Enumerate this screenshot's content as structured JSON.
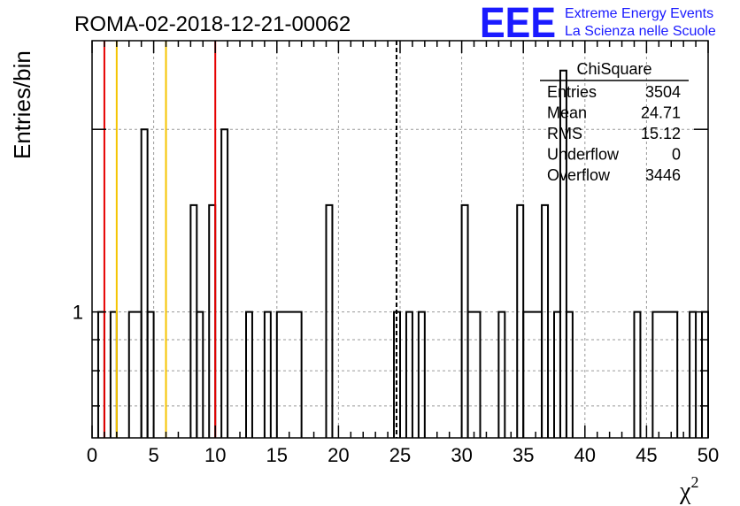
{
  "header": {
    "title": "ROMA-02-2018-12-21-00062",
    "logo_text": "EEE",
    "logo_line1": "Extreme Energy Events",
    "logo_line2": "La Scienza nelle Scuole",
    "logo_color": "#1a1aff"
  },
  "stats": {
    "title": "ChiSquare",
    "rows": [
      {
        "label": "Entries",
        "value": "3504"
      },
      {
        "label": "Mean",
        "value": "24.71"
      },
      {
        "label": "RMS",
        "value": "15.12"
      },
      {
        "label": "Underflow",
        "value": "0"
      },
      {
        "label": "Overflow",
        "value": "3446"
      }
    ]
  },
  "chart_data": {
    "type": "bar",
    "histogram": "step",
    "xlabel": "χ",
    "xlabel_sup": "2",
    "ylabel": "Entries/bin",
    "xlim": [
      0,
      50
    ],
    "ylim": [
      0.62,
      2.8
    ],
    "yscale": "log",
    "grid": true,
    "bin_width": 0.5,
    "x_ticks": [
      0,
      5,
      10,
      15,
      20,
      25,
      30,
      35,
      40,
      45,
      50
    ],
    "y_tick_labels": [
      {
        "value": 1,
        "label": "1"
      }
    ],
    "bins": [
      {
        "x0": 0.5,
        "x1": 1.0,
        "count": 1
      },
      {
        "x0": 1.5,
        "x1": 2.0,
        "count": 1
      },
      {
        "x0": 3.0,
        "x1": 4.0,
        "count": 1
      },
      {
        "x0": 4.0,
        "x1": 4.5,
        "count": 2
      },
      {
        "x0": 4.5,
        "x1": 5.0,
        "count": 1
      },
      {
        "x0": 8.0,
        "x1": 8.5,
        "count": 1.5
      },
      {
        "x0": 8.5,
        "x1": 9.0,
        "count": 1
      },
      {
        "x0": 9.5,
        "x1": 10.0,
        "count": 1.5
      },
      {
        "x0": 10.5,
        "x1": 11.0,
        "count": 2
      },
      {
        "x0": 12.5,
        "x1": 13.0,
        "count": 1
      },
      {
        "x0": 14.0,
        "x1": 14.5,
        "count": 1
      },
      {
        "x0": 15.0,
        "x1": 17.0,
        "count": 1
      },
      {
        "x0": 19.0,
        "x1": 19.5,
        "count": 1.5
      },
      {
        "x0": 24.5,
        "x1": 25.0,
        "count": 1
      },
      {
        "x0": 25.5,
        "x1": 26.0,
        "count": 1
      },
      {
        "x0": 26.5,
        "x1": 27.0,
        "count": 1
      },
      {
        "x0": 30.0,
        "x1": 30.5,
        "count": 1.5
      },
      {
        "x0": 30.5,
        "x1": 31.5,
        "count": 1
      },
      {
        "x0": 33.0,
        "x1": 33.5,
        "count": 1
      },
      {
        "x0": 34.5,
        "x1": 35.0,
        "count": 1.5
      },
      {
        "x0": 35.0,
        "x1": 36.5,
        "count": 1
      },
      {
        "x0": 36.5,
        "x1": 37.0,
        "count": 1.5
      },
      {
        "x0": 37.5,
        "x1": 38.0,
        "count": 1
      },
      {
        "x0": 38.0,
        "x1": 38.5,
        "count": 2.5
      },
      {
        "x0": 38.5,
        "x1": 39.0,
        "count": 1
      },
      {
        "x0": 44.0,
        "x1": 44.5,
        "count": 1
      },
      {
        "x0": 45.5,
        "x1": 47.5,
        "count": 1
      },
      {
        "x0": 48.5,
        "x1": 49.0,
        "count": 1
      },
      {
        "x0": 49.5,
        "x1": 50.0,
        "count": 1
      }
    ],
    "reference_lines": [
      {
        "x": 1.0,
        "color": "#e60000",
        "style": "solid"
      },
      {
        "x": 2.0,
        "color": "#f5c400",
        "style": "solid"
      },
      {
        "x": 6.0,
        "color": "#f5c400",
        "style": "solid"
      },
      {
        "x": 10.0,
        "color": "#e60000",
        "style": "solid"
      },
      {
        "x": 24.71,
        "color": "#000000",
        "style": "dashed"
      }
    ]
  }
}
